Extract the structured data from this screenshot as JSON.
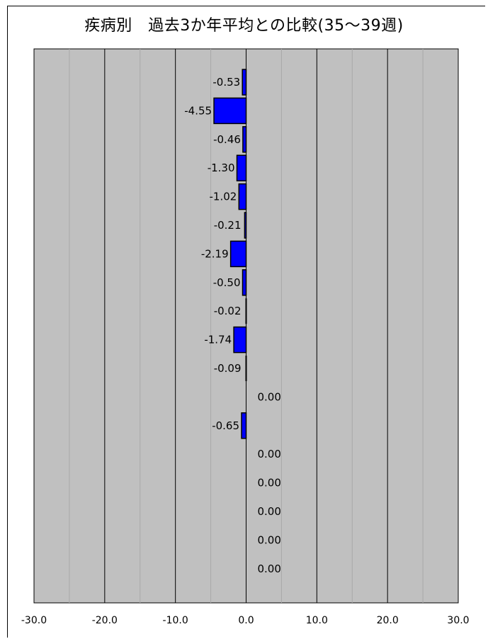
{
  "chart_data": {
    "type": "bar",
    "orientation": "horizontal",
    "title": "疾病別　過去3か年平均との比較(35～39週)",
    "xlim": [
      -30,
      30
    ],
    "x_ticks": [
      "-30.0",
      "-20.0",
      "-10.0",
      "0.0",
      "10.0",
      "20.0",
      "30.0"
    ],
    "x_tick_values": [
      -30,
      -20,
      -10,
      0,
      10,
      20,
      30
    ],
    "grid": true,
    "values": [
      -0.53,
      -4.55,
      -0.46,
      -1.3,
      -1.02,
      -0.21,
      -2.19,
      -0.5,
      -0.02,
      -1.74,
      -0.09,
      0.0,
      -0.65,
      0.0,
      0.0,
      0.0,
      0.0,
      0.0
    ],
    "labels": [
      "-0.53",
      "-4.55",
      "-0.46",
      "-1.30",
      "-1.02",
      "-0.21",
      "-2.19",
      "-0.50",
      "-0.02",
      "-1.74",
      "-0.09",
      "0.00",
      "-0.65",
      "0.00",
      "0.00",
      "0.00",
      "0.00",
      "0.00"
    ],
    "colors": {
      "bar": "#0000ff",
      "plot_bg": "#c0c0c0",
      "major_grid": "#000000",
      "minor_grid": "#a8a8a8"
    }
  }
}
